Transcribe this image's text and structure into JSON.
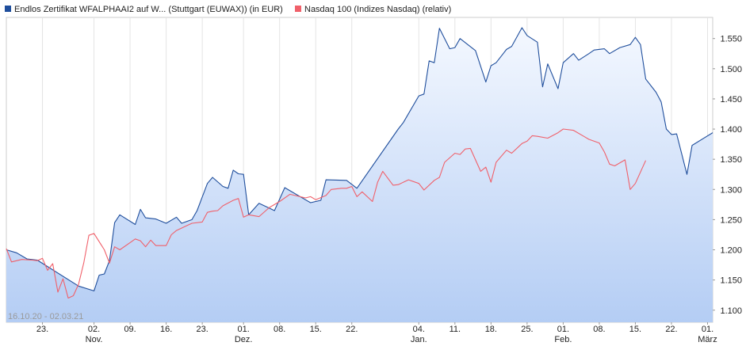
{
  "chart_data": {
    "type": "area",
    "legend": {
      "placement": "top-left",
      "items": [
        {
          "label": "Endlos Zertifikat WFALPHAAI2 auf W... (Stuttgart (EUWAX)) (in EUR)",
          "color": "#1f4e9c"
        },
        {
          "label": "Nasdaq 100 (Indizes Nasdaq) (relativ)",
          "color": "#f0606a"
        }
      ]
    },
    "date_range_label": "16.10.20 - 02.03.21",
    "y_axis": {
      "min": 1.08,
      "max": 1.585,
      "ticks": [
        1.1,
        1.15,
        1.2,
        1.25,
        1.3,
        1.35,
        1.4,
        1.45,
        1.5,
        1.55
      ],
      "tick_labels": [
        "1.100",
        "1.150",
        "1.200",
        "1.250",
        "1.300",
        "1.350",
        "1.400",
        "1.450",
        "1.500",
        "1.550"
      ],
      "position": "right"
    },
    "x_axis": {
      "start": "2020-10-16",
      "end": "2021-03-02",
      "ticks": [
        {
          "date": "2020-10-23",
          "label": "23."
        },
        {
          "date": "2020-11-02",
          "label": "02."
        },
        {
          "date": "2020-11-09",
          "label": "09."
        },
        {
          "date": "2020-11-16",
          "label": "16."
        },
        {
          "date": "2020-11-23",
          "label": "23."
        },
        {
          "date": "2020-12-01",
          "label": "01."
        },
        {
          "date": "2020-12-08",
          "label": "08."
        },
        {
          "date": "2020-12-15",
          "label": "15."
        },
        {
          "date": "2020-12-22",
          "label": "22."
        },
        {
          "date": "2021-01-04",
          "label": "04."
        },
        {
          "date": "2021-01-11",
          "label": "11."
        },
        {
          "date": "2021-01-18",
          "label": "18."
        },
        {
          "date": "2021-01-25",
          "label": "25."
        },
        {
          "date": "2021-02-01",
          "label": "01."
        },
        {
          "date": "2021-02-08",
          "label": "08."
        },
        {
          "date": "2021-02-15",
          "label": "15."
        },
        {
          "date": "2021-02-22",
          "label": "22."
        },
        {
          "date": "2021-03-01",
          "label": "01."
        }
      ],
      "months": [
        {
          "date": "2020-11-02",
          "label": "Nov."
        },
        {
          "date": "2020-12-01",
          "label": "Dez."
        },
        {
          "date": "2021-01-04",
          "label": "Jan."
        },
        {
          "date": "2021-02-01",
          "label": "Feb."
        },
        {
          "date": "2021-03-01",
          "label": "März"
        }
      ]
    },
    "grid": {
      "vertical": true,
      "horizontal": false
    },
    "series": [
      {
        "name": "Endlos Zertifikat WFALPHAAI2 auf W... (Stuttgart (EUWAX)) (in EUR)",
        "color": "#1f4e9c",
        "fill": true,
        "points": [
          [
            "2020-10-16",
            1.2
          ],
          [
            "2020-10-18",
            1.195
          ],
          [
            "2020-10-20",
            1.185
          ],
          [
            "2020-10-22",
            1.183
          ],
          [
            "2020-10-30",
            1.14
          ],
          [
            "2020-11-02",
            1.132
          ],
          [
            "2020-11-03",
            1.158
          ],
          [
            "2020-11-04",
            1.16
          ],
          [
            "2020-11-05",
            1.182
          ],
          [
            "2020-11-06",
            1.245
          ],
          [
            "2020-11-07",
            1.258
          ],
          [
            "2020-11-10",
            1.242
          ],
          [
            "2020-11-11",
            1.267
          ],
          [
            "2020-11-12",
            1.253
          ],
          [
            "2020-11-14",
            1.251
          ],
          [
            "2020-11-16",
            1.244
          ],
          [
            "2020-11-18",
            1.254
          ],
          [
            "2020-11-19",
            1.244
          ],
          [
            "2020-11-21",
            1.25
          ],
          [
            "2020-11-22",
            1.265
          ],
          [
            "2020-11-24",
            1.31
          ],
          [
            "2020-11-25",
            1.32
          ],
          [
            "2020-11-27",
            1.305
          ],
          [
            "2020-11-28",
            1.302
          ],
          [
            "2020-11-29",
            1.332
          ],
          [
            "2020-11-30",
            1.326
          ],
          [
            "2020-12-01",
            1.325
          ],
          [
            "2020-12-02",
            1.258
          ],
          [
            "2020-12-04",
            1.277
          ],
          [
            "2020-12-06",
            1.269
          ],
          [
            "2020-12-07",
            1.265
          ],
          [
            "2020-12-09",
            1.303
          ],
          [
            "2020-12-14",
            1.278
          ],
          [
            "2020-12-16",
            1.282
          ],
          [
            "2020-12-17",
            1.316
          ],
          [
            "2020-12-21",
            1.315
          ],
          [
            "2020-12-23",
            1.302
          ],
          [
            "2020-12-31",
            1.4
          ],
          [
            "2021-01-01",
            1.411
          ],
          [
            "2021-01-04",
            1.455
          ],
          [
            "2021-01-05",
            1.458
          ],
          [
            "2021-01-06",
            1.513
          ],
          [
            "2021-01-07",
            1.51
          ],
          [
            "2021-01-08",
            1.567
          ],
          [
            "2021-01-10",
            1.533
          ],
          [
            "2021-01-11",
            1.535
          ],
          [
            "2021-01-12",
            1.55
          ],
          [
            "2021-01-15",
            1.53
          ],
          [
            "2021-01-17",
            1.478
          ],
          [
            "2021-01-18",
            1.505
          ],
          [
            "2021-01-19",
            1.51
          ],
          [
            "2021-01-21",
            1.532
          ],
          [
            "2021-01-22",
            1.537
          ],
          [
            "2021-01-24",
            1.568
          ],
          [
            "2021-01-25",
            1.555
          ],
          [
            "2021-01-27",
            1.544
          ],
          [
            "2021-01-28",
            1.47
          ],
          [
            "2021-01-29",
            1.508
          ],
          [
            "2021-01-31",
            1.467
          ],
          [
            "2021-02-01",
            1.51
          ],
          [
            "2021-02-03",
            1.525
          ],
          [
            "2021-02-04",
            1.514
          ],
          [
            "2021-02-06",
            1.525
          ],
          [
            "2021-02-07",
            1.531
          ],
          [
            "2021-02-09",
            1.533
          ],
          [
            "2021-02-10",
            1.525
          ],
          [
            "2021-02-12",
            1.535
          ],
          [
            "2021-02-14",
            1.54
          ],
          [
            "2021-02-15",
            1.552
          ],
          [
            "2021-02-16",
            1.54
          ],
          [
            "2021-02-17",
            1.483
          ],
          [
            "2021-02-19",
            1.461
          ],
          [
            "2021-02-20",
            1.445
          ],
          [
            "2021-02-21",
            1.4
          ],
          [
            "2021-02-22",
            1.391
          ],
          [
            "2021-02-23",
            1.392
          ],
          [
            "2021-02-25",
            1.325
          ],
          [
            "2021-02-26",
            1.373
          ],
          [
            "2021-03-02",
            1.394
          ]
        ]
      },
      {
        "name": "Nasdaq 100 (Indizes Nasdaq) (relativ)",
        "color": "#f0606a",
        "fill": false,
        "points": [
          [
            "2020-10-16",
            1.202
          ],
          [
            "2020-10-17",
            1.18
          ],
          [
            "2020-10-19",
            1.184
          ],
          [
            "2020-10-21",
            1.183
          ],
          [
            "2020-10-22",
            1.182
          ],
          [
            "2020-10-23",
            1.186
          ],
          [
            "2020-10-24",
            1.166
          ],
          [
            "2020-10-25",
            1.177
          ],
          [
            "2020-10-26",
            1.13
          ],
          [
            "2020-10-27",
            1.152
          ],
          [
            "2020-10-28",
            1.12
          ],
          [
            "2020-10-29",
            1.124
          ],
          [
            "2020-10-30",
            1.143
          ],
          [
            "2020-10-31",
            1.178
          ],
          [
            "2020-11-01",
            1.224
          ],
          [
            "2020-11-02",
            1.227
          ],
          [
            "2020-11-04",
            1.2
          ],
          [
            "2020-11-05",
            1.178
          ],
          [
            "2020-11-06",
            1.205
          ],
          [
            "2020-11-07",
            1.2
          ],
          [
            "2020-11-09",
            1.212
          ],
          [
            "2020-11-10",
            1.218
          ],
          [
            "2020-11-11",
            1.215
          ],
          [
            "2020-11-12",
            1.205
          ],
          [
            "2020-11-13",
            1.216
          ],
          [
            "2020-11-14",
            1.207
          ],
          [
            "2020-11-16",
            1.207
          ],
          [
            "2020-11-17",
            1.225
          ],
          [
            "2020-11-18",
            1.232
          ],
          [
            "2020-11-20",
            1.24
          ],
          [
            "2020-11-21",
            1.244
          ],
          [
            "2020-11-23",
            1.246
          ],
          [
            "2020-11-24",
            1.262
          ],
          [
            "2020-11-25",
            1.264
          ],
          [
            "2020-11-26",
            1.265
          ],
          [
            "2020-11-27",
            1.273
          ],
          [
            "2020-11-29",
            1.282
          ],
          [
            "2020-11-30",
            1.285
          ],
          [
            "2020-12-01",
            1.254
          ],
          [
            "2020-12-02",
            1.258
          ],
          [
            "2020-12-04",
            1.255
          ],
          [
            "2020-12-06",
            1.27
          ],
          [
            "2020-12-08",
            1.28
          ],
          [
            "2020-12-10",
            1.292
          ],
          [
            "2020-12-11",
            1.29
          ],
          [
            "2020-12-13",
            1.286
          ],
          [
            "2020-12-14",
            1.288
          ],
          [
            "2020-12-15",
            1.283
          ],
          [
            "2020-12-17",
            1.29
          ],
          [
            "2020-12-18",
            1.3
          ],
          [
            "2020-12-20",
            1.302
          ],
          [
            "2020-12-21",
            1.302
          ],
          [
            "2020-12-22",
            1.305
          ],
          [
            "2020-12-23",
            1.288
          ],
          [
            "2020-12-24",
            1.296
          ],
          [
            "2020-12-26",
            1.28
          ],
          [
            "2020-12-27",
            1.312
          ],
          [
            "2020-12-28",
            1.33
          ],
          [
            "2020-12-30",
            1.307
          ],
          [
            "2020-12-31",
            1.308
          ],
          [
            "2021-01-02",
            1.316
          ],
          [
            "2021-01-04",
            1.31
          ],
          [
            "2021-01-05",
            1.299
          ],
          [
            "2021-01-07",
            1.315
          ],
          [
            "2021-01-08",
            1.32
          ],
          [
            "2021-01-09",
            1.345
          ],
          [
            "2021-01-11",
            1.36
          ],
          [
            "2021-01-12",
            1.358
          ],
          [
            "2021-01-13",
            1.367
          ],
          [
            "2021-01-14",
            1.368
          ],
          [
            "2021-01-16",
            1.33
          ],
          [
            "2021-01-17",
            1.337
          ],
          [
            "2021-01-18",
            1.312
          ],
          [
            "2021-01-19",
            1.345
          ],
          [
            "2021-01-21",
            1.365
          ],
          [
            "2021-01-22",
            1.36
          ],
          [
            "2021-01-24",
            1.376
          ],
          [
            "2021-01-25",
            1.38
          ],
          [
            "2021-01-26",
            1.389
          ],
          [
            "2021-01-27",
            1.388
          ],
          [
            "2021-01-29",
            1.385
          ],
          [
            "2021-01-31",
            1.394
          ],
          [
            "2021-02-01",
            1.4
          ],
          [
            "2021-02-03",
            1.398
          ],
          [
            "2021-02-05",
            1.388
          ],
          [
            "2021-02-06",
            1.383
          ],
          [
            "2021-02-08",
            1.377
          ],
          [
            "2021-02-09",
            1.362
          ],
          [
            "2021-02-10",
            1.342
          ],
          [
            "2021-02-11",
            1.339
          ],
          [
            "2021-02-13",
            1.349
          ],
          [
            "2021-02-14",
            1.3
          ],
          [
            "2021-02-15",
            1.31
          ],
          [
            "2021-02-17",
            1.348
          ]
        ]
      }
    ]
  }
}
